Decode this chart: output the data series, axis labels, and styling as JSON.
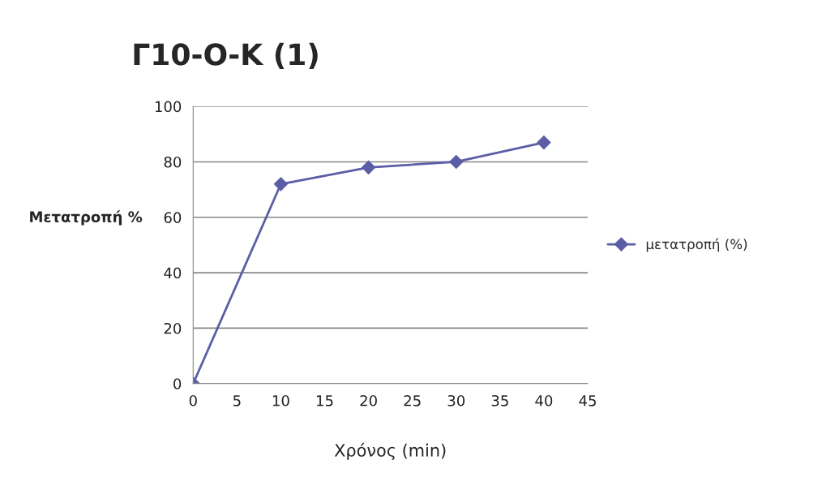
{
  "chart_data": {
    "type": "line",
    "title": "Γ10-Ο-Κ (1)",
    "xlabel": "Χρόνος (min)",
    "ylabel": "Μετατροπή %",
    "x": [
      0,
      10,
      20,
      30,
      40
    ],
    "series": [
      {
        "name": "μετατροπή (%)",
        "color": "#5b5ea6",
        "values": [
          0,
          72,
          78,
          80,
          87
        ]
      }
    ],
    "xlim": [
      0,
      45
    ],
    "xticks": [
      0,
      5,
      10,
      15,
      20,
      25,
      30,
      35,
      40,
      45
    ],
    "ylim": [
      0,
      100
    ],
    "yticks": [
      0,
      20,
      40,
      60,
      80,
      100
    ],
    "grid": "y",
    "legend": "right",
    "marker": "diamond",
    "line_style": "solid"
  }
}
